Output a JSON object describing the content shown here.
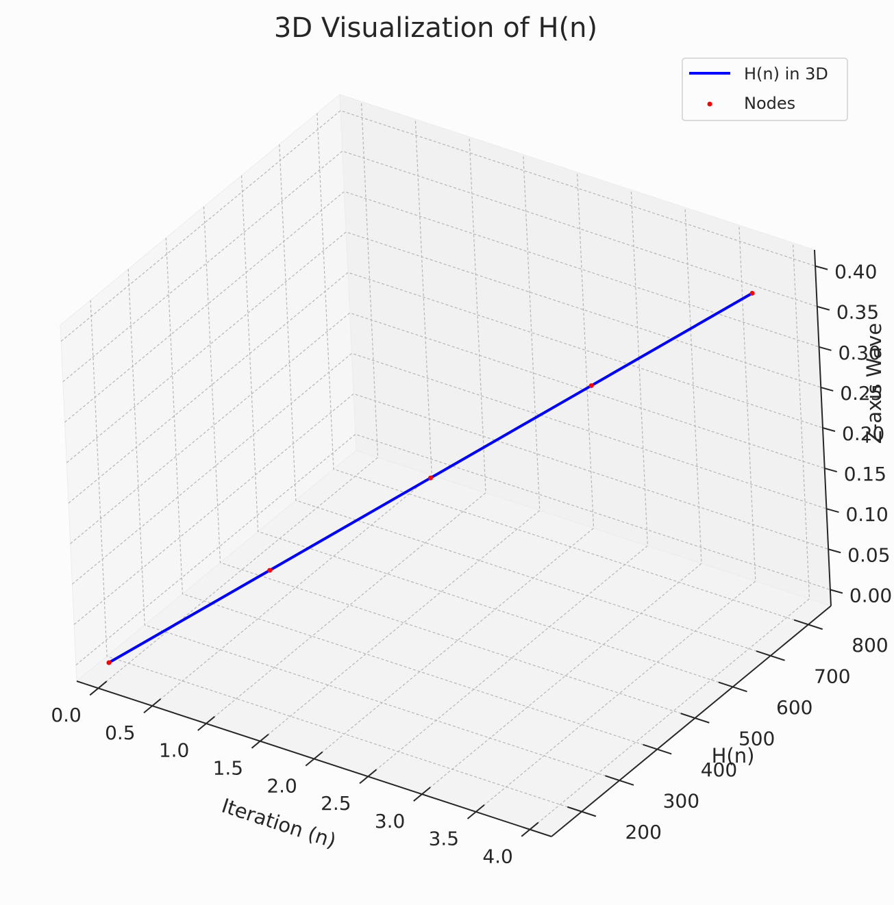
{
  "chart_data": {
    "type": "line3d",
    "title": "3D Visualization of H(n)",
    "xlabel": "Iteration (n)",
    "ylabel": "H(n)",
    "zlabel": "Z-axis Wave",
    "xlim": [
      -0.2,
      4.2
    ],
    "ylim": [
      120,
      860
    ],
    "zlim": [
      -0.02,
      0.42
    ],
    "xticks": [
      "0.0",
      "0.5",
      "1.0",
      "1.5",
      "2.0",
      "2.5",
      "3.0",
      "3.5",
      "4.0"
    ],
    "yticks": [
      "200",
      "300",
      "400",
      "500",
      "600",
      "700",
      "800"
    ],
    "zticks": [
      "0.00",
      "0.05",
      "0.10",
      "0.15",
      "0.20",
      "0.25",
      "0.30",
      "0.35",
      "0.40"
    ],
    "grid": true,
    "legend_position": "top-right",
    "series": [
      {
        "name": "H(n) in 3D",
        "kind": "line",
        "color": "#0000ff",
        "x": [
          0,
          1,
          2,
          3,
          4
        ],
        "y": [
          150,
          300,
          450,
          600,
          750
        ],
        "z": [
          0.0,
          0.1,
          0.2,
          0.3,
          0.4
        ]
      },
      {
        "name": "Nodes",
        "kind": "markers",
        "color": "#ff0000",
        "x": [
          0,
          1,
          2,
          3,
          4
        ],
        "y": [
          150,
          300,
          450,
          600,
          750
        ],
        "z": [
          0.0,
          0.1,
          0.2,
          0.3,
          0.4
        ]
      }
    ]
  }
}
